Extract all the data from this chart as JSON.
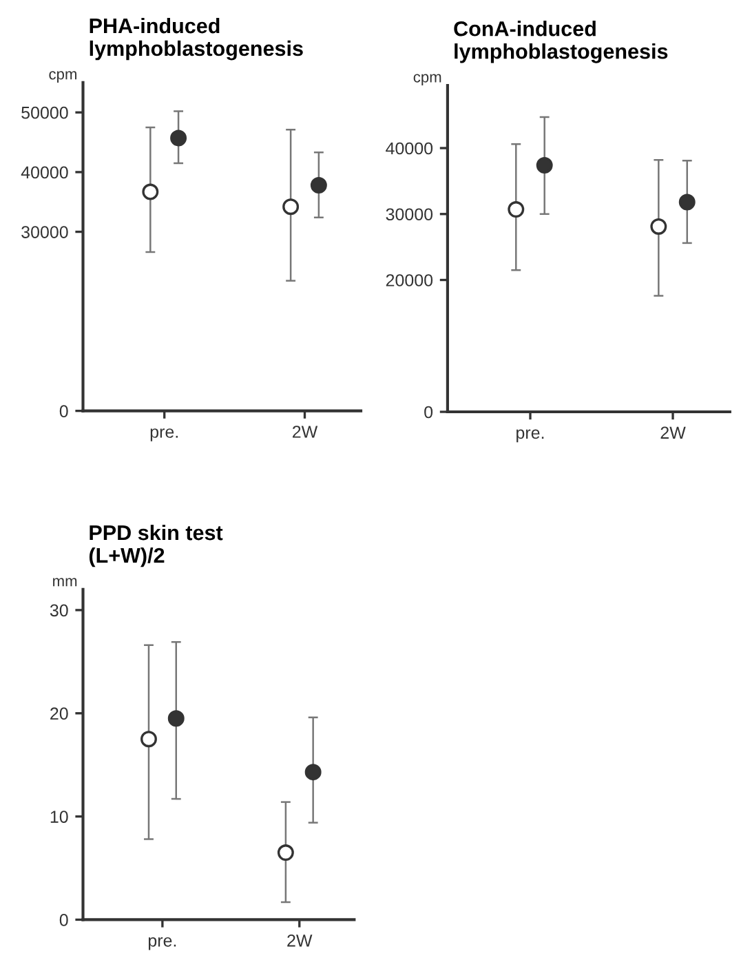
{
  "chart_data": [
    {
      "type": "scatter",
      "title": "PHA-induced\nlymphoblastogenesis",
      "ylabel": "cpm",
      "categories": [
        "pre.",
        "2W"
      ],
      "ylim": [
        0,
        55000
      ],
      "yticks": [
        0,
        30000,
        40000,
        50000
      ],
      "marker": "circle",
      "grid": false,
      "legend": false,
      "series": [
        {
          "color": "#ffffff",
          "values": [
            36700,
            34200
          ],
          "errors": [
            [
              26600,
              47500
            ],
            [
              21800,
              47100
            ]
          ]
        },
        {
          "color": "#333333",
          "values": [
            45700,
            37800
          ],
          "errors": [
            [
              41500,
              50200
            ],
            [
              32400,
              43300
            ]
          ]
        }
      ]
    },
    {
      "type": "scatter",
      "title": "ConA-induced\nlymphoblastogenesis",
      "ylabel": "cpm",
      "categories": [
        "pre.",
        "2W"
      ],
      "ylim": [
        0,
        49500
      ],
      "yticks": [
        0,
        20000,
        30000,
        40000
      ],
      "marker": "circle",
      "grid": false,
      "legend": false,
      "series": [
        {
          "color": "#ffffff",
          "values": [
            30700,
            28100
          ],
          "errors": [
            [
              21500,
              40600
            ],
            [
              17600,
              38200
            ]
          ]
        },
        {
          "color": "#333333",
          "values": [
            37400,
            31800
          ],
          "errors": [
            [
              30000,
              44700
            ],
            [
              25600,
              38100
            ]
          ]
        }
      ]
    },
    {
      "type": "scatter",
      "title": "PPD skin test\n(L+W)/2",
      "ylabel": "mm",
      "categories": [
        "pre.",
        "2W"
      ],
      "ylim": [
        0,
        32
      ],
      "yticks": [
        0,
        10,
        20,
        30
      ],
      "marker": "circle",
      "grid": false,
      "legend": false,
      "series": [
        {
          "color": "#ffffff",
          "values": [
            17.5,
            6.5
          ],
          "errors": [
            [
              7.8,
              26.6
            ],
            [
              1.7,
              11.4
            ]
          ]
        },
        {
          "color": "#333333",
          "values": [
            19.5,
            14.3
          ],
          "errors": [
            [
              11.7,
              26.9
            ],
            [
              9.4,
              19.6
            ]
          ]
        }
      ]
    }
  ]
}
